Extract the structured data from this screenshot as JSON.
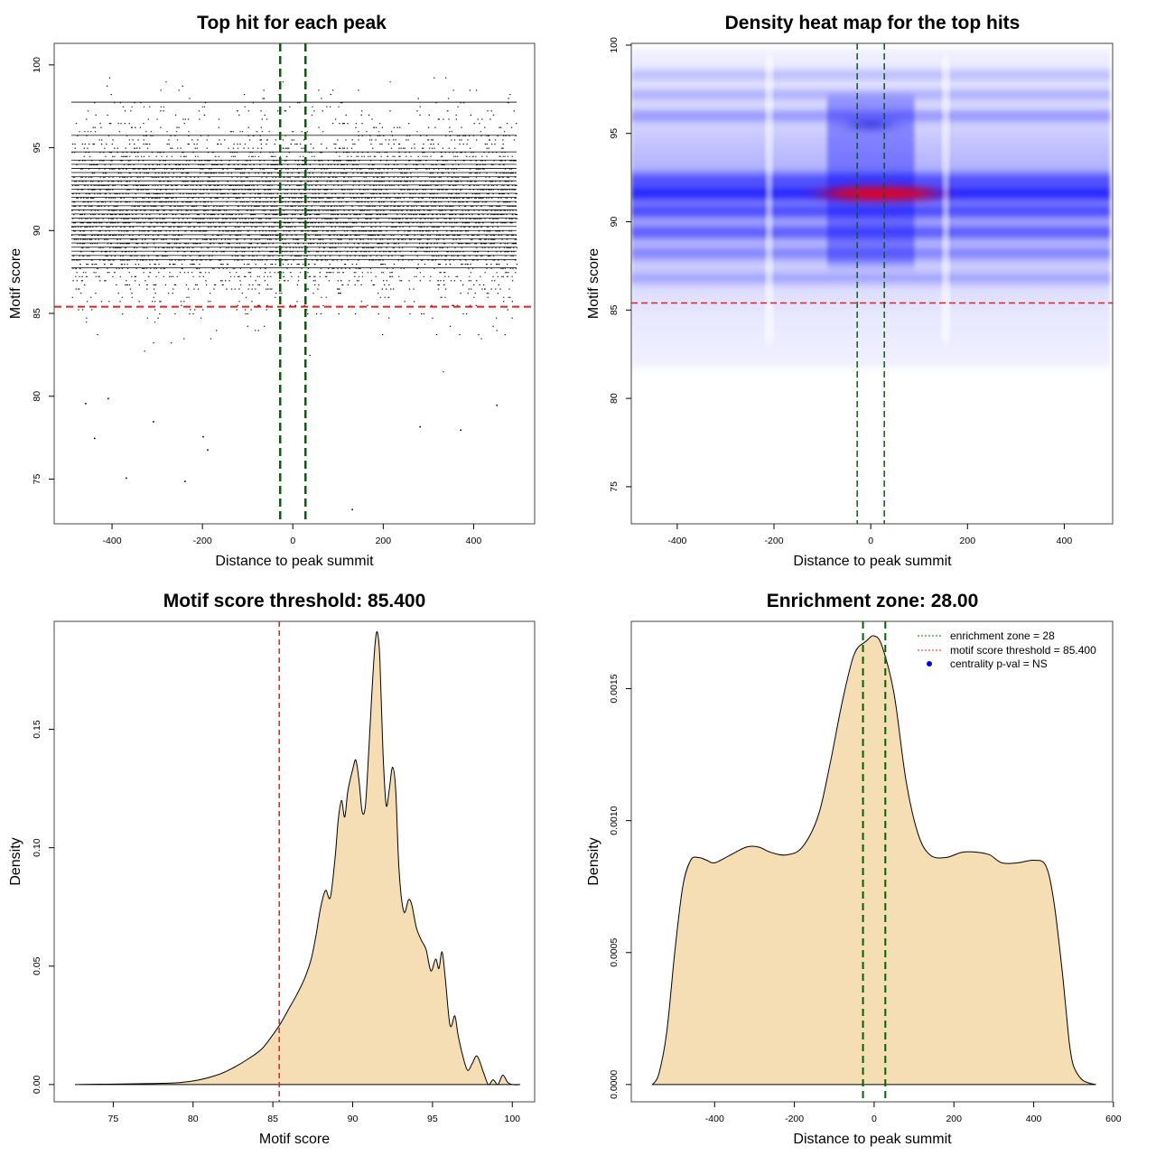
{
  "colors": {
    "fill": "#F5DEB3",
    "threshold": "#DD2222",
    "zone": "#006400",
    "pval": "#0000FF",
    "heat_low": "#0000FF",
    "heat_high": "#FF0000"
  },
  "chart_data": [
    {
      "id": "scatter",
      "type": "scatter",
      "title": "Top hit for each peak",
      "xlabel": "Distance to peak summit",
      "ylabel": "Motif score",
      "xlim": [
        -528,
        535
      ],
      "ylim": [
        72.3,
        101.3
      ],
      "xticks": [
        -400,
        -200,
        0,
        200,
        400
      ],
      "yticks": [
        75,
        80,
        85,
        90,
        95,
        100
      ],
      "threshold": 85.4,
      "zone": [
        -28,
        28
      ],
      "x_range": [
        -490,
        495
      ],
      "notable_points": [
        {
          "x": -440,
          "y": 77.5
        },
        {
          "x": -370,
          "y": 75.1
        },
        {
          "x": -240,
          "y": 74.9
        },
        {
          "x": -200,
          "y": 77.6
        },
        {
          "x": -190,
          "y": 76.8
        },
        {
          "x": 130,
          "y": 73.2
        },
        {
          "x": 280,
          "y": 78.2
        },
        {
          "x": 370,
          "y": 78.0
        },
        {
          "x": -310,
          "y": 78.5
        },
        {
          "x": -460,
          "y": 79.6
        },
        {
          "x": -410,
          "y": 79.9
        },
        {
          "x": 450,
          "y": 79.5
        }
      ]
    },
    {
      "id": "heatmap",
      "type": "heatmap",
      "title": "Density heat map for the top hits",
      "xlabel": "Distance to peak summit",
      "ylabel": "Motif score",
      "xlim": [
        -495,
        500
      ],
      "ylim": [
        72.9,
        100.1
      ],
      "xticks": [
        -400,
        -200,
        0,
        200,
        400
      ],
      "yticks": [
        75,
        80,
        85,
        90,
        95,
        100
      ],
      "threshold": 85.4,
      "zone": [
        -28,
        28
      ],
      "bands": [
        {
          "score": 91.6,
          "strength": 1.0
        },
        {
          "score": 92.4,
          "strength": 0.65
        },
        {
          "score": 90.6,
          "strength": 0.7
        },
        {
          "score": 89.4,
          "strength": 0.6
        },
        {
          "score": 88.2,
          "strength": 0.35
        },
        {
          "score": 96.0,
          "strength": 0.3
        },
        {
          "score": 97.2,
          "strength": 0.18
        },
        {
          "score": 98.3,
          "strength": 0.12
        },
        {
          "score": 86.8,
          "strength": 0.2
        }
      ],
      "hotspot": {
        "x": 0,
        "score": 91.6
      },
      "secondary_spot": {
        "x": 0,
        "score": 95.5
      }
    },
    {
      "id": "score_density",
      "type": "area",
      "title": "Motif score threshold: 85.400",
      "xlabel": "Motif score",
      "ylabel": "Density",
      "xlim": [
        71.3,
        101.4
      ],
      "ylim": [
        -0.0073,
        0.1956
      ],
      "xticks": [
        75,
        80,
        85,
        90,
        95,
        100
      ],
      "yticks": [
        0.0,
        0.05,
        0.1,
        0.15
      ],
      "ytick_labels": [
        "0.00",
        "0.05",
        "0.10",
        "0.15"
      ],
      "threshold": 85.4,
      "x": [
        72.6,
        78,
        80,
        81.5,
        82.5,
        83.5,
        84.3,
        85,
        85.5,
        86,
        86.5,
        87,
        87.4,
        87.7,
        88,
        88.3,
        88.6,
        88.9,
        89.1,
        89.3,
        89.5,
        89.7,
        90,
        90.2,
        90.4,
        90.6,
        90.8,
        91,
        91.2,
        91.4,
        91.55,
        91.7,
        91.9,
        92.1,
        92.3,
        92.5,
        92.7,
        92.9,
        93.2,
        93.5,
        93.7,
        94,
        94.3,
        94.6,
        94.9,
        95.2,
        95.4,
        95.6,
        95.8,
        96.1,
        96.4,
        96.6,
        96.9,
        97.2,
        97.5,
        97.8,
        98.2,
        98.5,
        98.8,
        99.1,
        99.4,
        99.7,
        100,
        100.5
      ],
      "y": [
        0.0,
        0.0005,
        0.0015,
        0.004,
        0.007,
        0.011,
        0.015,
        0.021,
        0.026,
        0.032,
        0.038,
        0.045,
        0.053,
        0.063,
        0.075,
        0.082,
        0.079,
        0.096,
        0.112,
        0.12,
        0.113,
        0.124,
        0.133,
        0.137,
        0.128,
        0.115,
        0.118,
        0.14,
        0.165,
        0.186,
        0.191,
        0.18,
        0.14,
        0.118,
        0.125,
        0.134,
        0.124,
        0.091,
        0.073,
        0.078,
        0.076,
        0.066,
        0.061,
        0.057,
        0.048,
        0.053,
        0.049,
        0.056,
        0.045,
        0.025,
        0.029,
        0.021,
        0.012,
        0.006,
        0.009,
        0.012,
        0.005,
        0.0,
        0.002,
        0.0,
        0.004,
        0.001,
        0.0,
        0.0
      ]
    },
    {
      "id": "distance_density",
      "type": "area",
      "title": "Enrichment zone: 28.00",
      "xlabel": "Distance to peak summit",
      "ylabel": "Density",
      "xlim": [
        -609,
        598
      ],
      "ylim": [
        -6.55e-05,
        0.001755
      ],
      "xticks": [
        -400,
        -200,
        0,
        200,
        400,
        600
      ],
      "yticks": [
        0.0,
        0.0005,
        0.001,
        0.0015
      ],
      "ytick_labels": [
        "0.0000",
        "0.0005",
        "0.0010",
        "0.0015"
      ],
      "zone": [
        -28,
        28
      ],
      "x": [
        -556,
        -540,
        -520,
        -500,
        -480,
        -460,
        -440,
        -420,
        -400,
        -360,
        -320,
        -290,
        -260,
        -220,
        -180,
        -140,
        -110,
        -80,
        -50,
        -20,
        0,
        20,
        50,
        80,
        110,
        140,
        180,
        220,
        260,
        290,
        320,
        360,
        400,
        430,
        450,
        470,
        480,
        490,
        500,
        520,
        540,
        556
      ],
      "y": [
        0.0,
        4e-05,
        0.0002,
        0.0005,
        0.00075,
        0.00085,
        0.00086,
        0.00085,
        0.00084,
        0.00087,
        0.0009,
        0.0009,
        0.00088,
        0.00087,
        0.0009,
        0.00102,
        0.00122,
        0.00145,
        0.00163,
        0.00168,
        0.0017,
        0.00166,
        0.00148,
        0.00115,
        0.00095,
        0.00087,
        0.00086,
        0.00088,
        0.00088,
        0.00087,
        0.00084,
        0.00084,
        0.00085,
        0.00083,
        0.0007,
        0.00045,
        0.0003,
        0.00015,
        7e-05,
        2e-05,
        5e-06,
        0.0
      ],
      "legend": {
        "position": "top-right",
        "items": [
          {
            "label": "enrichment zone = 28",
            "style": "dotted-line",
            "color": "#006400"
          },
          {
            "label": "motif score threshold = 85.400",
            "style": "dotted-line",
            "color": "#DD2222"
          },
          {
            "label": "centrality p-val = NS",
            "style": "point",
            "color": "#0000FF"
          }
        ]
      }
    }
  ]
}
